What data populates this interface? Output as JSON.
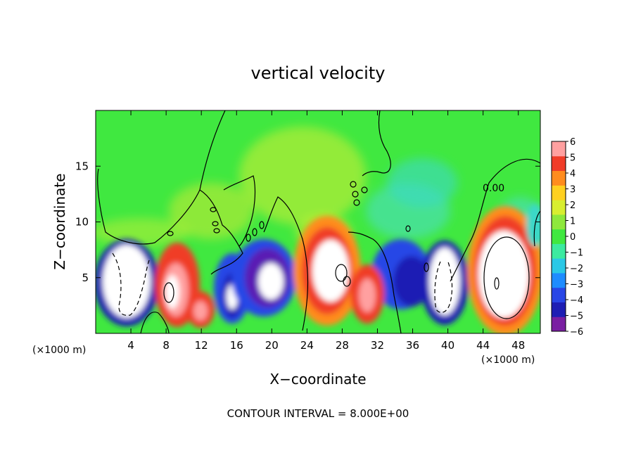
{
  "chart_data": {
    "type": "heatmap",
    "title": "vertical velocity",
    "xlabel": "X−coordinate",
    "ylabel": "Z−coordinate",
    "x_unit": "(×1000 m)",
    "footer": "CONTOUR INTERVAL = 8.000E+00",
    "xlim": [
      0,
      50.5
    ],
    "ylim": [
      0,
      20
    ],
    "x_ticks": [
      4,
      8,
      12,
      16,
      20,
      24,
      28,
      32,
      36,
      40,
      44,
      48
    ],
    "y_ticks": [
      5,
      10,
      15
    ],
    "colorbar": {
      "ticks": [
        "6",
        "5",
        "4",
        "3",
        "2",
        "1",
        "0",
        "−1",
        "−2",
        "−3",
        "−4",
        "−5",
        "−6"
      ],
      "range": [
        -6,
        6
      ],
      "colors": [
        "#7a1fa2",
        "#1e1eb4",
        "#2846e6",
        "#1e8cff",
        "#2ac8e6",
        "#3ceaa0",
        "#40e840",
        "#8ee83c",
        "#d8ee30",
        "#ffd020",
        "#ff8c1e",
        "#f03c28",
        "#ffa0a0"
      ]
    },
    "contour_labels": [
      "0.00"
    ],
    "features": [
      {
        "kind": "updraft",
        "x": 9.5,
        "z": 3.8,
        "w": 6
      },
      {
        "kind": "updraft",
        "x": 12,
        "z": 2.0,
        "w": 5
      },
      {
        "kind": "updraft",
        "x": 26,
        "z": 5.0,
        "w": 6
      },
      {
        "kind": "updraft",
        "x": 31,
        "z": 3.2,
        "w": 5
      },
      {
        "kind": "updraft",
        "x": 45.5,
        "z": 5.5,
        "w": 6
      },
      {
        "kind": "downdraft",
        "x": 4,
        "z": 4.5,
        "w": -6
      },
      {
        "kind": "downdraft",
        "x": 15,
        "z": 3.8,
        "w": -6
      },
      {
        "kind": "downdraft",
        "x": 19.5,
        "z": 4.5,
        "w": -6
      },
      {
        "kind": "downdraft",
        "x": 35,
        "z": 4.5,
        "w": -6
      },
      {
        "kind": "downdraft",
        "x": 39,
        "z": 4.5,
        "w": -6
      }
    ]
  }
}
